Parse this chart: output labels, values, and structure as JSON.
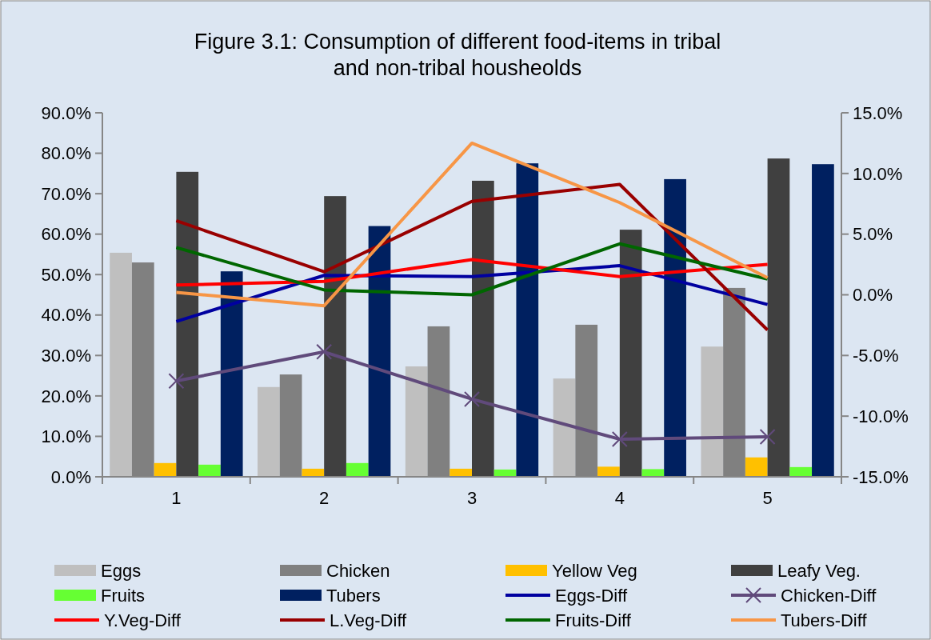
{
  "chart_data": {
    "type": "bar",
    "title": "Figure 3.1: Consumption of different food-items in tribal and non-tribal housheolds",
    "categories": [
      "1",
      "2",
      "3",
      "4",
      "5"
    ],
    "series": [
      {
        "name": "Eggs",
        "color": "#bfbfbf",
        "values": [
          0.554,
          0.222,
          0.273,
          0.243,
          0.322
        ]
      },
      {
        "name": "Chicken",
        "color": "#808080",
        "values": [
          0.53,
          0.253,
          0.372,
          0.376,
          0.467
        ]
      },
      {
        "name": "Yellow Veg",
        "color": "#ffc000",
        "values": [
          0.034,
          0.02,
          0.02,
          0.025,
          0.048
        ]
      },
      {
        "name": "Leafy Veg.",
        "color": "#404040",
        "values": [
          0.754,
          0.694,
          0.732,
          0.611,
          0.787
        ]
      },
      {
        "name": "Fruits",
        "color": "#66ff33",
        "values": [
          0.03,
          0.034,
          0.018,
          0.019,
          0.024
        ]
      },
      {
        "name": "Tubers",
        "color": "#002060",
        "values": [
          0.508,
          0.62,
          0.775,
          0.736,
          0.773
        ]
      },
      {
        "name": "Eggs-Diff",
        "type": "line",
        "axis": "y2",
        "color": "#0000a0",
        "marker": "none",
        "values": [
          -0.022,
          0.016,
          0.015,
          0.024,
          -0.008
        ]
      },
      {
        "name": "Chicken-Diff",
        "type": "line",
        "axis": "y2",
        "color": "#604a7b",
        "marker": "cross",
        "values": [
          -0.071,
          -0.047,
          -0.086,
          -0.119,
          -0.117
        ]
      },
      {
        "name": "Y.Veg-Diff",
        "type": "line",
        "axis": "y2",
        "color": "#ff0000",
        "marker": "none",
        "values": [
          0.008,
          0.011,
          0.029,
          0.015,
          0.025
        ]
      },
      {
        "name": "L.Veg-Diff",
        "type": "line",
        "axis": "y2",
        "color": "#990000",
        "marker": "none",
        "values": [
          0.061,
          0.019,
          0.077,
          0.091,
          -0.029
        ]
      },
      {
        "name": "Fruits-Diff",
        "type": "line",
        "axis": "y2",
        "color": "#006600",
        "marker": "none",
        "values": [
          0.039,
          0.004,
          0.0,
          0.042,
          0.013
        ]
      },
      {
        "name": "Tubers-Diff",
        "type": "line",
        "axis": "y2",
        "color": "#f79646",
        "marker": "none",
        "values": [
          0.002,
          -0.009,
          0.125,
          0.076,
          0.014
        ]
      }
    ],
    "ylim": [
      0,
      0.9
    ],
    "yticks": [
      {
        "value": 0,
        "label": "0.0%"
      },
      {
        "value": 0.1,
        "label": "10.0%"
      },
      {
        "value": 0.2,
        "label": "20.0%"
      },
      {
        "value": 0.3,
        "label": "30.0%"
      },
      {
        "value": 0.4,
        "label": "40.0%"
      },
      {
        "value": 0.5,
        "label": "50.0%"
      },
      {
        "value": 0.6,
        "label": "60.0%"
      },
      {
        "value": 0.7,
        "label": "70.0%"
      },
      {
        "value": 0.8,
        "label": "80.0%"
      },
      {
        "value": 0.9,
        "label": "90.0%"
      }
    ],
    "y2lim": [
      -0.15,
      0.15
    ],
    "y2ticks": [
      {
        "value": -0.15,
        "label": "-15.0%"
      },
      {
        "value": -0.1,
        "label": "-10.0%"
      },
      {
        "value": -0.05,
        "label": "-5.0%"
      },
      {
        "value": 0,
        "label": "0.0%"
      },
      {
        "value": 0.05,
        "label": "5.0%"
      },
      {
        "value": 0.1,
        "label": "10.0%"
      },
      {
        "value": 0.15,
        "label": "15.0%"
      }
    ],
    "legend": "bottom",
    "grid": false
  }
}
